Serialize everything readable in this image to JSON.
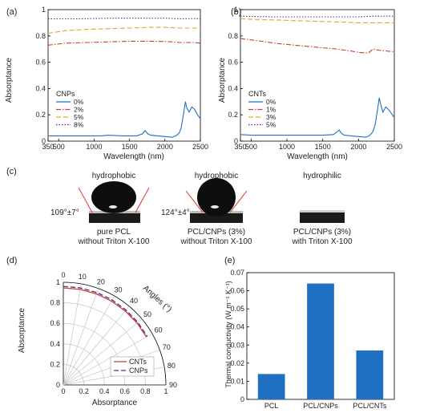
{
  "colors": {
    "blue": "#1f6fc2",
    "red": "#c8412b",
    "gold": "#e1a62a",
    "purple": "#5a2d8c",
    "bar": "#1f6fc2",
    "axis": "#000000"
  },
  "chart_data": [
    {
      "panel_label": "(a)",
      "type": "line",
      "xlabel": "Wavelength (nm)",
      "ylabel": "Absorptance",
      "xlim": [
        350,
        2500
      ],
      "ylim": [
        0,
        1
      ],
      "xticks": [
        "500",
        "1000",
        "1500",
        "2000",
        "2500"
      ],
      "yticks": [
        "0",
        "0.2",
        "0.4",
        "0.6",
        "0.8",
        "1"
      ],
      "legend_title": "CNPs",
      "legend_position": "bottom-left",
      "series": [
        {
          "name": "0%",
          "color_key": "blue",
          "dash": "solid",
          "x": [
            350,
            500,
            800,
            1100,
            1200,
            1400,
            1600,
            1680,
            1720,
            1760,
            1800,
            1900,
            2000,
            2100,
            2150,
            2200,
            2230,
            2260,
            2290,
            2310,
            2340,
            2380,
            2420,
            2460,
            2500
          ],
          "y": [
            0.04,
            0.04,
            0.04,
            0.04,
            0.045,
            0.04,
            0.04,
            0.055,
            0.08,
            0.055,
            0.045,
            0.04,
            0.035,
            0.03,
            0.04,
            0.06,
            0.1,
            0.2,
            0.3,
            0.25,
            0.22,
            0.26,
            0.24,
            0.2,
            0.17
          ]
        },
        {
          "name": "2%",
          "color_key": "red",
          "dash": "dashdot",
          "x": [
            350,
            600,
            900,
            1200,
            1500,
            1800,
            2000,
            2100,
            2200,
            2300,
            2400,
            2500
          ],
          "y": [
            0.73,
            0.745,
            0.75,
            0.755,
            0.76,
            0.76,
            0.758,
            0.755,
            0.75,
            0.75,
            0.75,
            0.745
          ]
        },
        {
          "name": "5%",
          "color_key": "gold",
          "dash": "dashed",
          "x": [
            350,
            600,
            900,
            1200,
            1500,
            1800,
            2000,
            2200,
            2400,
            2500
          ],
          "y": [
            0.82,
            0.84,
            0.85,
            0.855,
            0.86,
            0.865,
            0.865,
            0.86,
            0.86,
            0.86
          ]
        },
        {
          "name": "8%",
          "color_key": "purple",
          "dash": "dotted",
          "x": [
            350,
            800,
            1200,
            1600,
            2000,
            2200,
            2400,
            2500
          ],
          "y": [
            0.93,
            0.93,
            0.935,
            0.935,
            0.935,
            0.93,
            0.932,
            0.93
          ]
        }
      ]
    },
    {
      "panel_label": "(b)",
      "type": "line",
      "xlabel": "Wavelength (nm)",
      "ylabel": "Absorptance",
      "xlim": [
        350,
        2500
      ],
      "ylim": [
        0,
        1
      ],
      "xticks": [
        "500",
        "1000",
        "1500",
        "2000",
        "2500"
      ],
      "yticks": [
        "0",
        "0.2",
        "0.4",
        "0.6",
        "0.8",
        "1"
      ],
      "legend_title": "CNTs",
      "legend_position": "bottom-left",
      "series": [
        {
          "name": "0%",
          "color_key": "blue",
          "dash": "solid",
          "x": [
            350,
            500,
            800,
            1100,
            1300,
            1500,
            1650,
            1700,
            1730,
            1760,
            1800,
            1900,
            2000,
            2100,
            2150,
            2200,
            2230,
            2260,
            2290,
            2310,
            2340,
            2380,
            2420,
            2460,
            2500
          ],
          "y": [
            0.05,
            0.045,
            0.045,
            0.045,
            0.045,
            0.045,
            0.05,
            0.07,
            0.085,
            0.06,
            0.045,
            0.04,
            0.035,
            0.03,
            0.04,
            0.07,
            0.12,
            0.22,
            0.33,
            0.28,
            0.22,
            0.26,
            0.24,
            0.21,
            0.18
          ]
        },
        {
          "name": "1%",
          "color_key": "red",
          "dash": "dashdot",
          "x": [
            350,
            500,
            700,
            900,
            1100,
            1300,
            1500,
            1700,
            1900,
            2000,
            2100,
            2150,
            2200,
            2300,
            2400,
            2500
          ],
          "y": [
            0.78,
            0.77,
            0.755,
            0.74,
            0.73,
            0.72,
            0.71,
            0.7,
            0.685,
            0.675,
            0.67,
            0.675,
            0.7,
            0.69,
            0.685,
            0.68
          ]
        },
        {
          "name": "3%",
          "color_key": "gold",
          "dash": "dashed",
          "x": [
            350,
            600,
            900,
            1200,
            1500,
            1800,
            2000,
            2200,
            2400,
            2500
          ],
          "y": [
            0.93,
            0.925,
            0.92,
            0.915,
            0.91,
            0.905,
            0.9,
            0.9,
            0.9,
            0.9
          ]
        },
        {
          "name": "5%",
          "color_key": "purple",
          "dash": "dotted",
          "x": [
            350,
            800,
            1200,
            1600,
            2000,
            2200,
            2400,
            2500
          ],
          "y": [
            0.95,
            0.945,
            0.945,
            0.945,
            0.945,
            0.95,
            0.95,
            0.95
          ]
        }
      ]
    },
    {
      "panel_label": "(d)",
      "type": "line",
      "polar": true,
      "xlabel": "Absorptance",
      "ylabel": "Absorptance",
      "angle_label": "Angles (°)",
      "angle_ticks": [
        "0",
        "10",
        "20",
        "30",
        "40",
        "50",
        "60",
        "70",
        "80",
        "90"
      ],
      "radial_ticks": [
        "0",
        "0.2",
        "0.4",
        "0.6",
        "0.8",
        "1"
      ],
      "left_ticks": [
        "0",
        "0.2",
        "0.4",
        "0.6",
        "0.8",
        "1"
      ],
      "legend_position": "bottom-right",
      "series": [
        {
          "name": "CNTs",
          "color_key": "red",
          "dash": "solid",
          "angle": [
            0,
            10,
            20,
            30,
            40,
            50,
            60
          ],
          "r": [
            0.945,
            0.945,
            0.944,
            0.942,
            0.94,
            0.938,
            0.935
          ]
        },
        {
          "name": "CNPs",
          "color_key": "purple",
          "dash": "dashed",
          "angle": [
            0,
            10,
            20,
            30,
            40,
            50,
            60
          ],
          "r": [
            0.96,
            0.96,
            0.958,
            0.955,
            0.952,
            0.948,
            0.945
          ]
        }
      ]
    },
    {
      "panel_label": "(e)",
      "type": "bar",
      "ylabel": "Thermal conductivity (W m⁻¹ K⁻¹)",
      "categories": [
        "PCL",
        "PCL/CNPs",
        "PCL/CNTs"
      ],
      "values": [
        0.014,
        0.064,
        0.027
      ],
      "ylim": [
        0,
        0.07
      ],
      "yticks": [
        "0",
        "0.01",
        "0.02",
        "0.03",
        "0.04",
        "0.05",
        "0.06",
        "0.07"
      ]
    }
  ],
  "panel_c": {
    "label": "(c)",
    "samples": [
      {
        "state": "hydrophobic",
        "angle": "109°±7°",
        "line1": "pure PCL",
        "line2": "without Triton X-100"
      },
      {
        "state": "hydrophobic",
        "angle": "124°±4°",
        "line1": "PCL/CNPs (3%)",
        "line2": "without Triton X-100"
      },
      {
        "state": "hydrophilic",
        "angle": "",
        "line1": "PCL/CNPs (3%)",
        "line2": "with Triton X-100"
      }
    ]
  }
}
